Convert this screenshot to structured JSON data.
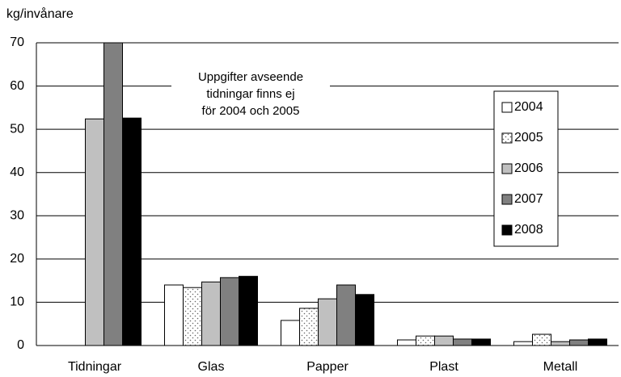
{
  "chart_data": {
    "type": "bar",
    "ylabel": "kg/invånare",
    "categories": [
      "Tidningar",
      "Glas",
      "Papper",
      "Plast",
      "Metall"
    ],
    "series": [
      {
        "name": "2004",
        "color": "#ffffff",
        "values": [
          null,
          14.0,
          5.8,
          1.3,
          0.9
        ]
      },
      {
        "name": "2005",
        "color": "#ffffff",
        "pattern": "dots",
        "values": [
          null,
          13.4,
          8.6,
          2.2,
          2.6
        ]
      },
      {
        "name": "2006",
        "color": "#c0c0c0",
        "values": [
          52.4,
          14.7,
          10.8,
          2.2,
          0.9
        ]
      },
      {
        "name": "2007",
        "color": "#808080",
        "values": [
          70,
          15.7,
          14.0,
          1.5,
          1.3
        ]
      },
      {
        "name": "2008",
        "color": "#000000",
        "values": [
          52.6,
          16.0,
          11.8,
          1.5,
          1.5
        ]
      }
    ],
    "annotation": [
      "Uppgifter avseende",
      "tidningar finns ej",
      "för 2004 och 2005"
    ],
    "ylim": [
      0,
      70
    ],
    "yticks": [
      0,
      10,
      20,
      30,
      40,
      50,
      60,
      70
    ],
    "grid": true,
    "legend": "right"
  }
}
